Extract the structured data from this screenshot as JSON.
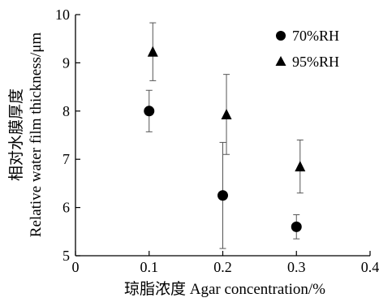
{
  "chart_data": {
    "type": "scatter",
    "xlabel": "琼脂浓度 Agar concentration/%",
    "ylabel": [
      "相对水膜厚度",
      "Relative water film thickness/μm"
    ],
    "xlim": [
      0,
      0.4
    ],
    "ylim": [
      5,
      10
    ],
    "xticks": [
      0,
      0.1,
      0.2,
      0.3,
      0.4
    ],
    "xtick_labels": [
      "0",
      "0.1",
      "0.2",
      "0.3",
      "0.4"
    ],
    "yticks": [
      5,
      6,
      7,
      8,
      9,
      10
    ],
    "ytick_labels": [
      "5",
      "6",
      "7",
      "8",
      "9",
      "10"
    ],
    "grid": false,
    "legend_position": "top-right",
    "series": [
      {
        "name": "70%RH",
        "marker": "circle",
        "x": [
          0.1,
          0.2,
          0.3
        ],
        "y": [
          8.0,
          6.25,
          5.6
        ],
        "error": [
          0.43,
          1.1,
          0.25
        ]
      },
      {
        "name": "95%RH",
        "marker": "triangle",
        "x": [
          0.1,
          0.2,
          0.3
        ],
        "y": [
          9.23,
          7.93,
          6.85
        ],
        "error": [
          0.6,
          0.83,
          0.55
        ]
      }
    ]
  }
}
